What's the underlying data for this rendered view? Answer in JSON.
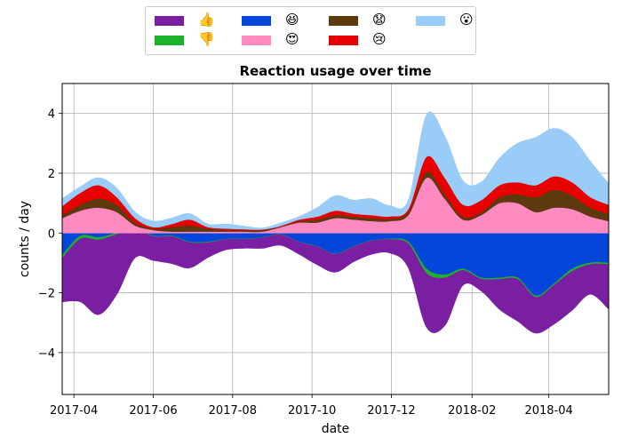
{
  "chart_data": {
    "type": "area",
    "title": "Reaction usage over time",
    "xlabel": "date",
    "ylabel": "counts / day",
    "ylim": [
      -5.4,
      5.0
    ],
    "xlim": [
      "2017-03-23",
      "2018-05-17"
    ],
    "grid": true,
    "legend_position": "top-center",
    "x_ticks": [
      "2017-04",
      "2017-06",
      "2017-08",
      "2017-10",
      "2017-12",
      "2018-02",
      "2018-04"
    ],
    "x_tick_dates": [
      "2017-04-01",
      "2017-06-01",
      "2017-08-01",
      "2017-10-01",
      "2017-12-01",
      "2018-02-01",
      "2018-04-01"
    ],
    "y_ticks": [
      -4,
      -2,
      0,
      2,
      4
    ],
    "x": [
      "2017-03-23",
      "2017-04-06",
      "2017-04-20",
      "2017-05-04",
      "2017-05-18",
      "2017-06-01",
      "2017-06-15",
      "2017-06-29",
      "2017-07-13",
      "2017-07-27",
      "2017-08-10",
      "2017-08-24",
      "2017-09-07",
      "2017-09-21",
      "2017-10-05",
      "2017-10-19",
      "2017-11-02",
      "2017-11-16",
      "2017-11-30",
      "2017-12-14",
      "2017-12-28",
      "2018-01-11",
      "2018-01-25",
      "2018-02-08",
      "2018-02-22",
      "2018-03-08",
      "2018-03-22",
      "2018-04-05",
      "2018-04-19",
      "2018-05-03",
      "2018-05-17"
    ],
    "series": [
      {
        "name": "👍",
        "side": "negative",
        "color": "#7b1fa2",
        "values": [
          1.45,
          2.1,
          2.5,
          2.0,
          1.0,
          0.8,
          0.9,
          0.85,
          0.5,
          0.35,
          0.3,
          0.35,
          0.35,
          0.4,
          0.6,
          0.6,
          0.5,
          0.45,
          0.45,
          0.8,
          1.8,
          1.6,
          0.5,
          0.4,
          1.0,
          1.4,
          1.2,
          1.3,
          1.3,
          1.0,
          1.5
        ]
      },
      {
        "name": "👎",
        "side": "negative",
        "color": "#1db22b",
        "values": [
          0.1,
          0.1,
          0.08,
          0.05,
          0.03,
          0.02,
          0.02,
          0.02,
          0.02,
          0.01,
          0.01,
          0.01,
          0.01,
          0.01,
          0.01,
          0.01,
          0.01,
          0.01,
          0.02,
          0.06,
          0.15,
          0.1,
          0.05,
          0.04,
          0.05,
          0.05,
          0.05,
          0.05,
          0.08,
          0.05,
          0.05
        ]
      },
      {
        "name": "😆",
        "side": "negative",
        "color": "#0446d9",
        "values": [
          0.75,
          0.1,
          0.15,
          0.0,
          -0.2,
          0.1,
          0.1,
          0.3,
          0.3,
          0.2,
          0.2,
          0.15,
          0.05,
          0.3,
          0.45,
          0.7,
          0.45,
          0.25,
          0.2,
          0.3,
          1.2,
          1.4,
          1.2,
          1.5,
          1.5,
          1.5,
          2.1,
          1.7,
          1.2,
          1.0,
          1.0
        ]
      },
      {
        "name": "😍",
        "side": "positive",
        "color": "#ff8ac2",
        "values": [
          0.5,
          0.75,
          0.85,
          0.7,
          0.25,
          0.1,
          0.05,
          0.05,
          0.05,
          0.05,
          0.05,
          0.05,
          0.2,
          0.35,
          0.35,
          0.5,
          0.45,
          0.4,
          0.4,
          0.6,
          1.85,
          1.15,
          0.45,
          0.6,
          1.0,
          1.0,
          0.7,
          0.85,
          0.8,
          0.55,
          0.4
        ]
      },
      {
        "name": "😧",
        "side": "positive",
        "color": "#5c3a0e",
        "values": [
          0.1,
          0.2,
          0.3,
          0.25,
          0.1,
          0.05,
          0.15,
          0.2,
          0.1,
          0.05,
          0.05,
          0.05,
          0.02,
          0.05,
          0.1,
          0.1,
          0.1,
          0.1,
          0.08,
          0.1,
          0.2,
          0.15,
          0.1,
          0.1,
          0.2,
          0.3,
          0.5,
          0.6,
          0.45,
          0.3,
          0.25
        ]
      },
      {
        "name": "😢",
        "side": "positive",
        "color": "#e60000",
        "values": [
          0.3,
          0.4,
          0.45,
          0.25,
          0.15,
          0.05,
          0.1,
          0.2,
          0.05,
          0.05,
          0.03,
          0.02,
          0.02,
          0.05,
          0.1,
          0.15,
          0.1,
          0.1,
          0.08,
          0.1,
          0.5,
          0.55,
          0.4,
          0.4,
          0.4,
          0.4,
          0.4,
          0.45,
          0.45,
          0.35,
          0.3
        ]
      },
      {
        "name": "😮",
        "side": "positive",
        "color": "#99ccf7",
        "values": [
          0.25,
          0.2,
          0.25,
          0.3,
          0.2,
          0.2,
          0.2,
          0.2,
          0.1,
          0.15,
          0.1,
          0.05,
          0.1,
          0.1,
          0.3,
          0.5,
          0.45,
          0.55,
          0.35,
          0.3,
          1.4,
          1.4,
          0.8,
          0.6,
          0.9,
          1.3,
          1.6,
          1.6,
          1.5,
          1.2,
          0.7
        ]
      }
    ]
  }
}
